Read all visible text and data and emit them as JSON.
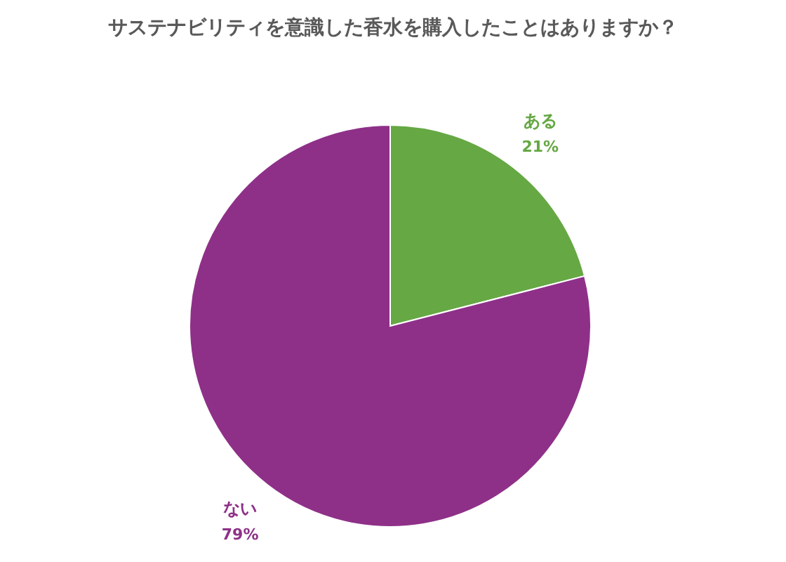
{
  "chart_data": {
    "type": "pie",
    "title": "サステナビリティを意識した香水を購入したことはありますか？",
    "categories": [
      "ある",
      "ない"
    ],
    "values": [
      21,
      79
    ],
    "value_labels": [
      "21%",
      "79%"
    ],
    "colors": [
      "#66a844",
      "#8e3088"
    ]
  }
}
